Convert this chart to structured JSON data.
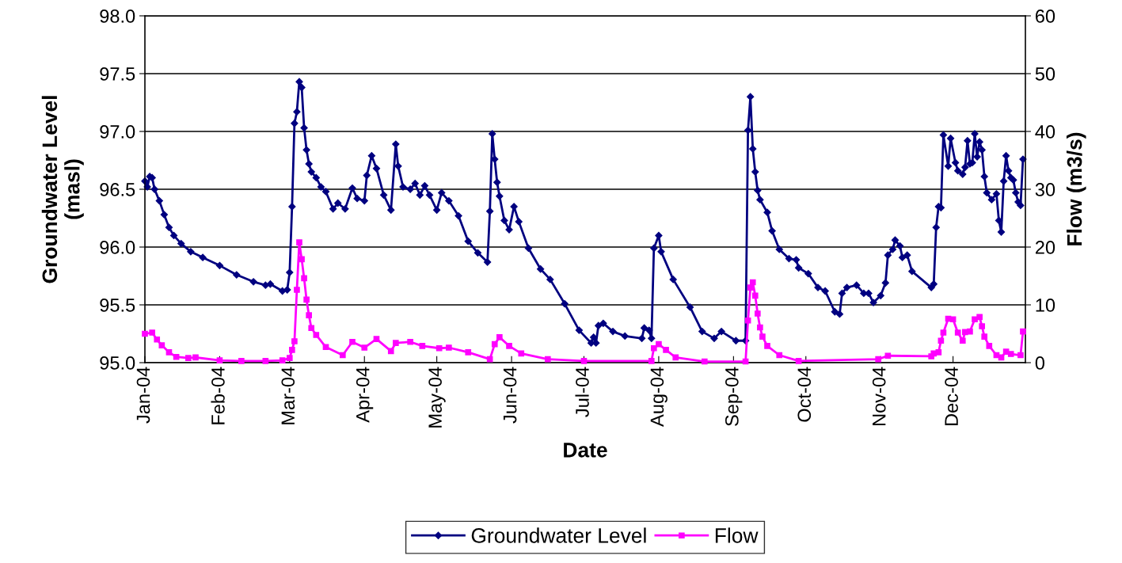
{
  "chart_data": {
    "type": "line",
    "xlabel": "Date",
    "ylabel": "Groundwater Level\n(masl)",
    "y2label": "Flow (m3/s)",
    "xlim": [
      "2004-01-01",
      "2004-12-31"
    ],
    "xticks": [
      {
        "value": "2004-01-01",
        "label": "Jan-04"
      },
      {
        "value": "2004-02-01",
        "label": "Feb-04"
      },
      {
        "value": "2004-03-01",
        "label": "Mar-04"
      },
      {
        "value": "2004-04-01",
        "label": "Apr-04"
      },
      {
        "value": "2004-05-01",
        "label": "May-04"
      },
      {
        "value": "2004-06-01",
        "label": "Jun-04"
      },
      {
        "value": "2004-07-01",
        "label": "Jul-04"
      },
      {
        "value": "2004-08-01",
        "label": "Aug-04"
      },
      {
        "value": "2004-09-01",
        "label": "Sep-04"
      },
      {
        "value": "2004-10-01",
        "label": "Oct-04"
      },
      {
        "value": "2004-11-01",
        "label": "Nov-04"
      },
      {
        "value": "2004-12-01",
        "label": "Dec-04"
      }
    ],
    "ylim": [
      95,
      98
    ],
    "yticks": [
      {
        "value": 95,
        "label": "95.0"
      },
      {
        "value": 95.5,
        "label": "95.5"
      },
      {
        "value": 96,
        "label": "96.0"
      },
      {
        "value": 96.5,
        "label": "96.5"
      },
      {
        "value": 97,
        "label": "97.0"
      },
      {
        "value": 97.5,
        "label": "97.5"
      },
      {
        "value": 98,
        "label": "98.0"
      }
    ],
    "y2lim": [
      0,
      60
    ],
    "y2ticks": [
      0,
      10,
      20,
      30,
      40,
      50,
      60
    ],
    "grid": "y",
    "legend": "bottom",
    "line_style": "solid",
    "series": [
      {
        "name": "Groundwater Level",
        "color": "#000080",
        "marker": "diamond",
        "x": [
          "2004-01-01",
          "2004-01-02",
          "2004-01-03",
          "2004-01-04",
          "2004-01-05",
          "2004-01-07",
          "2004-01-09",
          "2004-01-11",
          "2004-01-13",
          "2004-01-16",
          "2004-01-20",
          "2004-01-25",
          "2004-02-01",
          "2004-02-08",
          "2004-02-15",
          "2004-02-20",
          "2004-02-22",
          "2004-02-27",
          "2004-02-29",
          "2004-03-01",
          "2004-03-02",
          "2004-03-03",
          "2004-03-04",
          "2004-03-05",
          "2004-03-06",
          "2004-03-07",
          "2004-03-08",
          "2004-03-09",
          "2004-03-10",
          "2004-03-12",
          "2004-03-14",
          "2004-03-16",
          "2004-03-19",
          "2004-03-21",
          "2004-03-24",
          "2004-03-27",
          "2004-03-29",
          "2004-04-01",
          "2004-04-02",
          "2004-04-04",
          "2004-04-06",
          "2004-04-09",
          "2004-04-12",
          "2004-04-14",
          "2004-04-15",
          "2004-04-17",
          "2004-04-20",
          "2004-04-22",
          "2004-04-24",
          "2004-04-26",
          "2004-04-28",
          "2004-05-01",
          "2004-05-03",
          "2004-05-06",
          "2004-05-10",
          "2004-05-14",
          "2004-05-18",
          "2004-05-22",
          "2004-05-23",
          "2004-05-24",
          "2004-05-25",
          "2004-05-26",
          "2004-05-27",
          "2004-05-29",
          "2004-05-31",
          "2004-06-02",
          "2004-06-04",
          "2004-06-08",
          "2004-06-13",
          "2004-06-17",
          "2004-06-23",
          "2004-06-29",
          "2004-07-04",
          "2004-07-05",
          "2004-07-06",
          "2004-07-07",
          "2004-07-09",
          "2004-07-13",
          "2004-07-18",
          "2004-07-25",
          "2004-07-26",
          "2004-07-28",
          "2004-07-29",
          "2004-07-30",
          "2004-08-01",
          "2004-08-02",
          "2004-08-07",
          "2004-08-14",
          "2004-08-19",
          "2004-08-24",
          "2004-08-27",
          "2004-09-02",
          "2004-09-06",
          "2004-09-07",
          "2004-09-08",
          "2004-09-09",
          "2004-09-10",
          "2004-09-11",
          "2004-09-12",
          "2004-09-15",
          "2004-09-17",
          "2004-09-20",
          "2004-09-24",
          "2004-09-27",
          "2004-09-28",
          "2004-10-02",
          "2004-10-06",
          "2004-10-09",
          "2004-10-13",
          "2004-10-15",
          "2004-10-16",
          "2004-10-18",
          "2004-10-22",
          "2004-10-25",
          "2004-10-27",
          "2004-10-29",
          "2004-11-01",
          "2004-11-03",
          "2004-11-04",
          "2004-11-06",
          "2004-11-07",
          "2004-11-09",
          "2004-11-10",
          "2004-11-12",
          "2004-11-14",
          "2004-11-22",
          "2004-11-23",
          "2004-11-24",
          "2004-11-25",
          "2004-11-26",
          "2004-11-27",
          "2004-11-29",
          "2004-11-30",
          "2004-12-02",
          "2004-12-03",
          "2004-12-05",
          "2004-12-06",
          "2004-12-07",
          "2004-12-08",
          "2004-12-09",
          "2004-12-10",
          "2004-12-11",
          "2004-12-12",
          "2004-12-13",
          "2004-12-14",
          "2004-12-15",
          "2004-12-17",
          "2004-12-19",
          "2004-12-20",
          "2004-12-21",
          "2004-12-22",
          "2004-12-23",
          "2004-12-24",
          "2004-12-25",
          "2004-12-26",
          "2004-12-27",
          "2004-12-28",
          "2004-12-29",
          "2004-12-30"
        ],
        "values": [
          96.57,
          96.52,
          96.61,
          96.6,
          96.5,
          96.4,
          96.28,
          96.17,
          96.1,
          96.03,
          95.96,
          95.91,
          95.84,
          95.76,
          95.7,
          95.67,
          95.68,
          95.62,
          95.63,
          95.78,
          96.35,
          97.07,
          97.17,
          97.43,
          97.38,
          97.03,
          96.84,
          96.72,
          96.65,
          96.6,
          96.52,
          96.48,
          96.33,
          96.38,
          96.33,
          96.51,
          96.42,
          96.4,
          96.62,
          96.79,
          96.68,
          96.45,
          96.32,
          96.89,
          96.7,
          96.52,
          96.5,
          96.55,
          96.45,
          96.53,
          96.45,
          96.32,
          96.47,
          96.4,
          96.27,
          96.05,
          95.95,
          95.87,
          96.31,
          96.98,
          96.76,
          96.56,
          96.44,
          96.23,
          96.15,
          96.35,
          96.22,
          95.99,
          95.81,
          95.72,
          95.51,
          95.28,
          95.17,
          95.22,
          95.17,
          95.32,
          95.34,
          95.27,
          95.23,
          95.21,
          95.3,
          95.28,
          95.21,
          95.99,
          96.1,
          95.96,
          95.72,
          95.48,
          95.27,
          95.21,
          95.27,
          95.19,
          95.19,
          97.01,
          97.3,
          96.85,
          96.65,
          96.49,
          96.41,
          96.3,
          96.14,
          95.98,
          95.9,
          95.89,
          95.82,
          95.77,
          95.65,
          95.62,
          95.44,
          95.42,
          95.6,
          95.65,
          95.67,
          95.6,
          95.6,
          95.52,
          95.58,
          95.69,
          95.93,
          95.98,
          96.06,
          96.01,
          95.91,
          95.93,
          95.79,
          95.65,
          95.68,
          96.17,
          96.35,
          96.34,
          96.97,
          96.7,
          96.94,
          96.73,
          96.66,
          96.63,
          96.69,
          96.92,
          96.72,
          96.73,
          96.98,
          96.78,
          96.91,
          96.84,
          96.61,
          96.47,
          96.41,
          96.46,
          96.23,
          96.13,
          96.57,
          96.79,
          96.66,
          96.6,
          96.58,
          96.47,
          96.39,
          96.36,
          96.76
        ]
      },
      {
        "name": "Flow",
        "color": "#ff00ff",
        "marker": "square",
        "axis": "y2",
        "x": [
          "2004-01-01",
          "2004-01-04",
          "2004-01-06",
          "2004-01-08",
          "2004-01-11",
          "2004-01-14",
          "2004-01-19",
          "2004-01-22",
          "2004-02-01",
          "2004-02-10",
          "2004-02-20",
          "2004-02-27",
          "2004-03-01",
          "2004-03-02",
          "2004-03-03",
          "2004-03-04",
          "2004-03-05",
          "2004-03-06",
          "2004-03-07",
          "2004-03-08",
          "2004-03-09",
          "2004-03-10",
          "2004-03-12",
          "2004-03-16",
          "2004-03-23",
          "2004-03-27",
          "2004-04-01",
          "2004-04-06",
          "2004-04-12",
          "2004-04-14",
          "2004-04-20",
          "2004-04-25",
          "2004-05-02",
          "2004-05-06",
          "2004-05-14",
          "2004-05-23",
          "2004-05-25",
          "2004-05-27",
          "2004-05-31",
          "2004-06-05",
          "2004-06-16",
          "2004-07-01",
          "2004-07-29",
          "2004-07-30",
          "2004-08-01",
          "2004-08-04",
          "2004-08-08",
          "2004-08-20",
          "2004-09-06",
          "2004-09-07",
          "2004-09-08",
          "2004-09-09",
          "2004-09-10",
          "2004-09-11",
          "2004-09-12",
          "2004-09-13",
          "2004-09-15",
          "2004-09-20",
          "2004-09-28",
          "2004-10-31",
          "2004-11-04",
          "2004-11-22",
          "2004-11-23",
          "2004-11-25",
          "2004-11-26",
          "2004-11-27",
          "2004-11-29",
          "2004-12-01",
          "2004-12-03",
          "2004-12-05",
          "2004-12-06",
          "2004-12-08",
          "2004-12-10",
          "2004-12-12",
          "2004-12-13",
          "2004-12-14",
          "2004-12-16",
          "2004-12-19",
          "2004-12-21",
          "2004-12-23",
          "2004-12-25",
          "2004-12-29",
          "2004-12-30"
        ],
        "values": [
          5.0,
          5.2,
          4.0,
          3.0,
          1.8,
          1.0,
          0.8,
          0.9,
          0.4,
          0.3,
          0.3,
          0.4,
          0.8,
          2.2,
          3.7,
          12.6,
          20.8,
          17.9,
          14.6,
          10.9,
          8.2,
          6.0,
          4.8,
          2.7,
          1.3,
          3.6,
          2.6,
          4.1,
          2.0,
          3.4,
          3.6,
          2.9,
          2.5,
          2.6,
          1.8,
          0.6,
          3.2,
          4.4,
          2.9,
          1.6,
          0.6,
          0.3,
          0.3,
          2.5,
          3.2,
          2.2,
          0.9,
          0.2,
          0.2,
          7.3,
          13.0,
          13.9,
          11.6,
          8.5,
          6.1,
          4.5,
          2.9,
          1.3,
          0.3,
          0.6,
          1.2,
          1.1,
          1.6,
          1.8,
          3.8,
          5.2,
          7.6,
          7.5,
          5.2,
          3.8,
          5.3,
          5.4,
          7.5,
          7.9,
          6.3,
          4.5,
          2.9,
          1.3,
          0.9,
          1.9,
          1.5,
          1.3,
          5.4
        ]
      }
    ]
  }
}
